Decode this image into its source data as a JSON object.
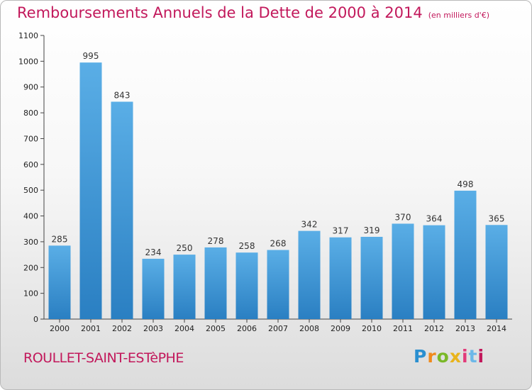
{
  "chart_data": {
    "type": "bar",
    "title": "Remboursements Annuels de la Dette de 2000 à 2014",
    "subtitle": "(en milliers d'€)",
    "categories": [
      "2000",
      "2001",
      "2002",
      "2003",
      "2004",
      "2005",
      "2006",
      "2007",
      "2008",
      "2009",
      "2010",
      "2011",
      "2012",
      "2013",
      "2014"
    ],
    "values": [
      285,
      995,
      843,
      234,
      250,
      278,
      258,
      268,
      342,
      317,
      319,
      370,
      364,
      498,
      365
    ],
    "ylim": [
      0,
      1100
    ],
    "yticks": [
      0,
      100,
      200,
      300,
      400,
      500,
      600,
      700,
      800,
      900,
      1000,
      1100
    ],
    "xlabel": "",
    "ylabel": "",
    "grid": false,
    "bar_color_top": "#5aaee6",
    "bar_color_bottom": "#2a7fc2"
  },
  "footer": {
    "city": "ROULLET-SAINT-ESTèPHE",
    "logo": [
      "P",
      "r",
      "o",
      "x",
      "i",
      "t",
      "i"
    ]
  },
  "colors": {
    "accent": "#c2185b"
  }
}
